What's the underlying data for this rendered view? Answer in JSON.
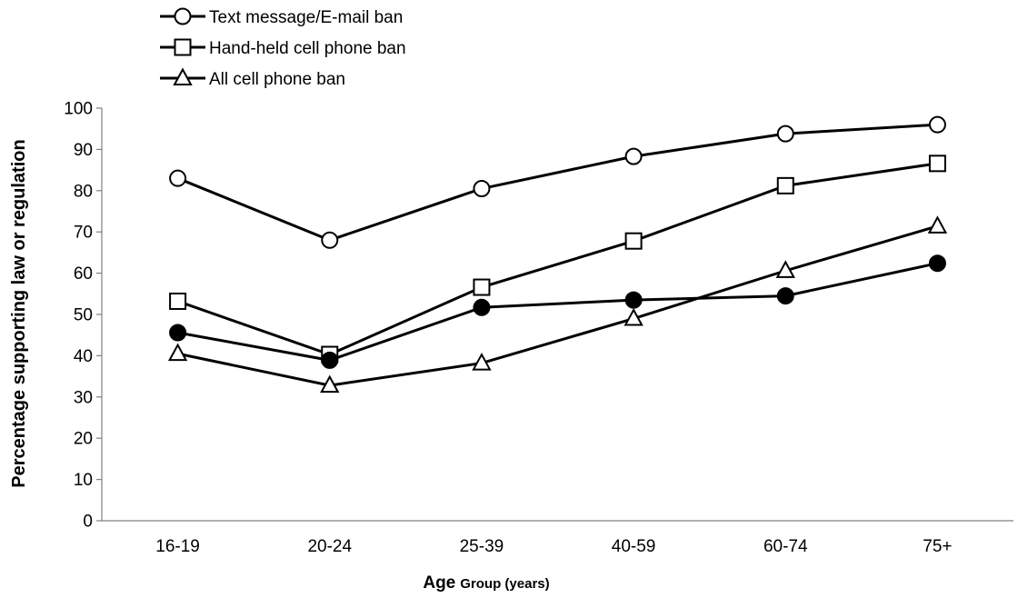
{
  "chart_data": {
    "type": "line",
    "categories": [
      "16-19",
      "20-24",
      "25-39",
      "40-59",
      "60-74",
      "75+"
    ],
    "series": [
      {
        "name": "Text message/E-mail ban",
        "marker": "circle-open",
        "values": [
          83,
          68,
          80.5,
          88.3,
          93.8,
          96
        ]
      },
      {
        "name": "Hand-held cell phone ban",
        "marker": "square-open",
        "values": [
          53.2,
          40.3,
          56.6,
          67.8,
          81.2,
          86.6
        ]
      },
      {
        "name": "All cell phone ban",
        "marker": "triangle-open",
        "values": [
          40.5,
          32.8,
          38.2,
          49,
          60.6,
          71.4
        ]
      },
      {
        "name": "",
        "marker": "circle-filled",
        "values": [
          45.6,
          38.9,
          51.7,
          53.5,
          54.5,
          62.4
        ]
      }
    ],
    "xlabel_main": "Age",
    "xlabel_sub": "Group (years)",
    "ylabel": "Percentage supporting law or regulation",
    "ylim": [
      0,
      100
    ],
    "yticks": [
      "0",
      "10",
      "20",
      "30",
      "40",
      "50",
      "60",
      "70",
      "80",
      "90",
      "100"
    ],
    "grid": false,
    "legend_position": "top-left",
    "colors": {
      "line": "#000000",
      "axis": "#808080"
    }
  }
}
